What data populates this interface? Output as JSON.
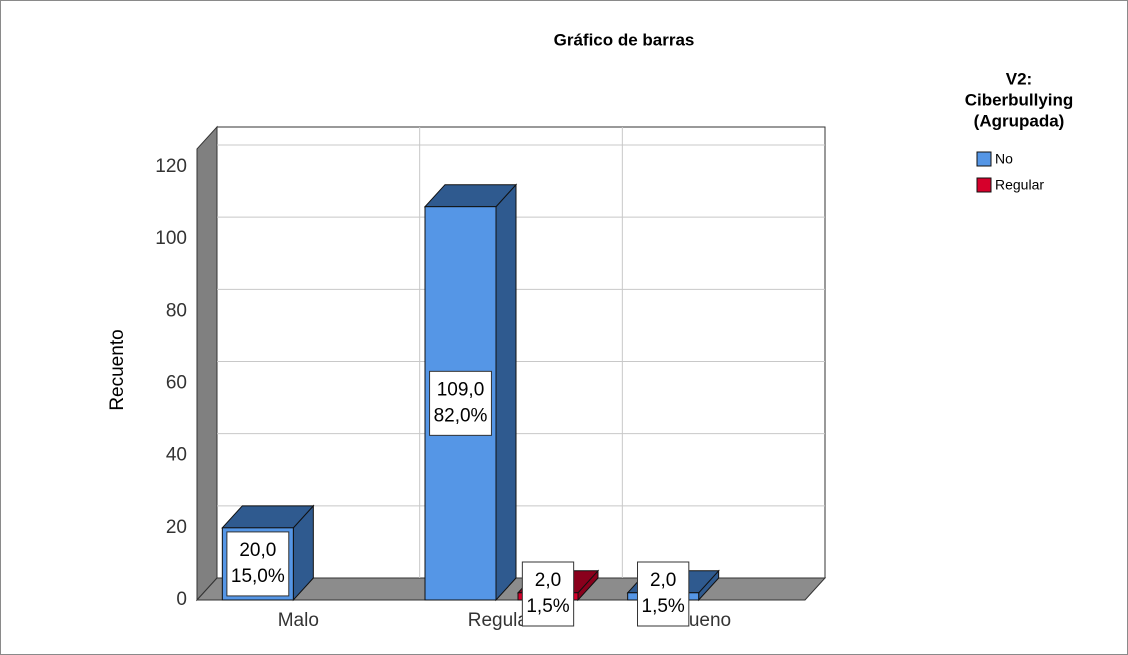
{
  "chart_data": {
    "type": "bar3d",
    "title": "Gráfico de barras",
    "y_label": "Recuento",
    "categories": [
      "Malo",
      "Regular",
      "Bueno"
    ],
    "legend_title": [
      "V2:",
      "Ciberbullying",
      "(Agrupada)"
    ],
    "series": [
      {
        "name": "No",
        "color": "#5596e6",
        "side_color": "#2f5a8f",
        "values": [
          20,
          109,
          2
        ],
        "value_labels": [
          "20,0",
          "109,0",
          "2,0"
        ],
        "percentages": [
          15,
          82,
          1.5
        ],
        "percentage_labels": [
          "15,0%",
          "82,0%",
          "1,5%"
        ]
      },
      {
        "name": "Regular",
        "color": "#d6002b",
        "side_color": "#8a001c",
        "values": [
          null,
          2,
          null
        ],
        "value_labels": [
          null,
          "2,0",
          null
        ],
        "percentages": [
          null,
          1.5,
          null
        ],
        "percentage_labels": [
          null,
          "1,5%",
          null
        ]
      }
    ],
    "ylim": [
      0,
      125
    ],
    "yticks": [
      0,
      20,
      40,
      60,
      80,
      100,
      120
    ],
    "grid": true,
    "legend": "right"
  }
}
